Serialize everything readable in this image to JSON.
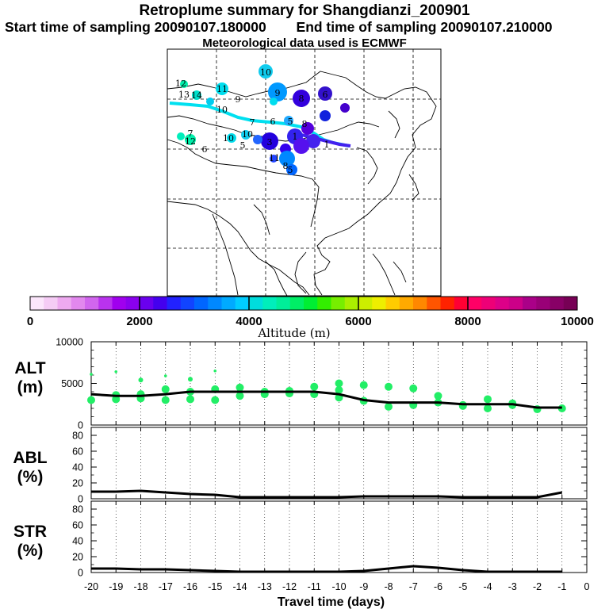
{
  "title_line1": "Retroplume summary for Shangdianzi_200901",
  "title_line2_start": "Start time of sampling 20090107.180000",
  "title_line2_end": "End time of sampling 20090107.210000",
  "title_line3": "Meteorological data used is ECMWF",
  "colorbar": {
    "label": "Altitude (m)",
    "ticks": [
      "0",
      "2000",
      "4000",
      "6000",
      "8000",
      "10000"
    ],
    "colors": [
      "#fbe6fb",
      "#f5ccf5",
      "#eeaaf0",
      "#e288ee",
      "#d166ee",
      "#b933ee",
      "#a000ee",
      "#8a00ee",
      "#6a00ee",
      "#4400ee",
      "#2222ff",
      "#1144ff",
      "#0066ff",
      "#0088ff",
      "#00aaff",
      "#00ccff",
      "#00dddd",
      "#00eebb",
      "#00ee99",
      "#00ee66",
      "#00ee33",
      "#33ee00",
      "#77ee00",
      "#aaee00",
      "#ccee00",
      "#eeee00",
      "#ffcc00",
      "#ffaa00",
      "#ff8800",
      "#ff5500",
      "#ff2200",
      "#ff0033",
      "#ff0066",
      "#ee0077",
      "#dd0088",
      "#cc0088",
      "#aa0088",
      "#990077",
      "#880066",
      "#770055"
    ]
  },
  "map_markers": {
    "track_labels": [
      "1",
      "2",
      "3",
      "4",
      "5",
      "6",
      "7",
      "8",
      "9",
      "10",
      "11",
      "12",
      "13",
      "14"
    ]
  },
  "chart_data": [
    {
      "id": "ALT",
      "type": "line",
      "ylabel_line1": "ALT",
      "ylabel_line2": "(m)",
      "ylim": [
        0,
        10000
      ],
      "yticks": [
        "0",
        "5000",
        "10000"
      ],
      "x": [
        -20,
        -19,
        -18,
        -17,
        -16,
        -15,
        -14,
        -13,
        -12,
        -11,
        -10,
        -9,
        -8,
        -7,
        -6,
        -5,
        -4,
        -3,
        -2,
        -1
      ],
      "median": [
        3700,
        3500,
        3500,
        3700,
        4000,
        4000,
        4000,
        4000,
        4000,
        4000,
        3700,
        3000,
        2700,
        2700,
        2700,
        2500,
        2500,
        2500,
        2100,
        2100
      ],
      "points_x": [
        -20,
        -20,
        -19,
        -19,
        -19,
        -18,
        -18,
        -18,
        -17,
        -17,
        -17,
        -16,
        -16,
        -16,
        -15,
        -15,
        -15,
        -14,
        -14,
        -13,
        -13,
        -12,
        -12,
        -11,
        -11,
        -10,
        -10,
        -10,
        -9,
        -9,
        -8,
        -8,
        -7,
        -7,
        -6,
        -6,
        -5,
        -5,
        -4,
        -4,
        -3,
        -3,
        -2,
        -1
      ],
      "points_y": [
        3000,
        6100,
        3100,
        3600,
        6400,
        3200,
        3700,
        5400,
        3000,
        4300,
        5900,
        3100,
        5500,
        4000,
        3000,
        4300,
        6500,
        4500,
        3500,
        4000,
        3700,
        4100,
        3800,
        4600,
        3700,
        4200,
        3300,
        5000,
        2900,
        4800,
        2200,
        4600,
        2400,
        4400,
        2700,
        3500,
        2300,
        2400,
        2000,
        3100,
        2600,
        2400,
        1900,
        2000
      ]
    },
    {
      "id": "ABL",
      "type": "line",
      "ylabel_line1": "ABL",
      "ylabel_line2": "(%)",
      "ylim": [
        0,
        90
      ],
      "yticks": [
        "0",
        "20",
        "40",
        "60",
        "80"
      ],
      "x": [
        -20,
        -19,
        -18,
        -17,
        -16,
        -15,
        -14,
        -13,
        -12,
        -11,
        -10,
        -9,
        -8,
        -7,
        -6,
        -5,
        -4,
        -3,
        -2,
        -1
      ],
      "values": [
        9,
        9,
        10,
        8,
        6,
        5,
        2,
        2,
        2,
        2,
        2,
        3,
        3,
        3,
        3,
        2,
        2,
        2,
        2,
        8
      ]
    },
    {
      "id": "STR",
      "type": "line",
      "ylabel_line1": "STR",
      "ylabel_line2": "(%)",
      "ylim": [
        0,
        90
      ],
      "yticks": [
        "0",
        "20",
        "40",
        "60",
        "80"
      ],
      "x": [
        -20,
        -19,
        -18,
        -17,
        -16,
        -15,
        -14,
        -13,
        -12,
        -11,
        -10,
        -9,
        -8,
        -7,
        -6,
        -5,
        -4,
        -3,
        -2,
        -1
      ],
      "values": [
        5,
        5,
        4,
        4,
        3,
        2,
        1,
        1,
        1,
        1,
        1,
        2,
        5,
        8,
        6,
        3,
        1,
        1,
        1,
        1
      ],
      "xlabel": "Travel time (days)",
      "xtick_labels": [
        "-20",
        "-19",
        "-18",
        "-17",
        "-16",
        "-15",
        "-14",
        "-13",
        "-12",
        "-11",
        "-10",
        "-9",
        "-8",
        "-7",
        "-6",
        "-5",
        "-4",
        "-3",
        "-2",
        "-1",
        "0"
      ]
    }
  ]
}
